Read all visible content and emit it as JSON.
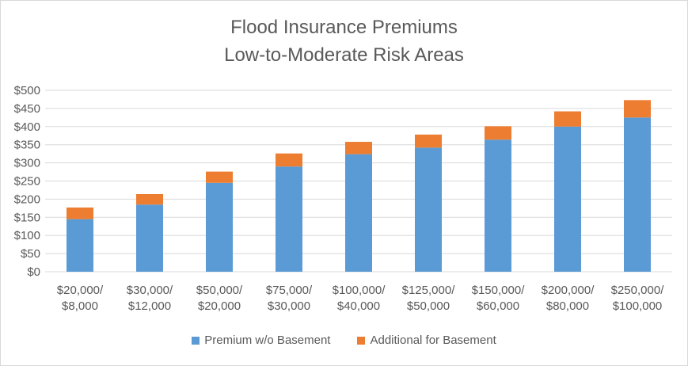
{
  "chart_data": {
    "type": "bar",
    "stacked": true,
    "title": [
      "Flood Insurance Premiums",
      "Low-to-Moderate Risk Areas"
    ],
    "xlabel": "",
    "ylabel": "",
    "categories": [
      [
        "$20,000/",
        "$8,000"
      ],
      [
        "$30,000/",
        "$12,000"
      ],
      [
        "$50,000/",
        "$20,000"
      ],
      [
        "$75,000/",
        "$30,000"
      ],
      [
        "$100,000/",
        "$40,000"
      ],
      [
        "$125,000/",
        "$50,000"
      ],
      [
        "$150,000/",
        "$60,000"
      ],
      [
        "$200,000/",
        "$80,000"
      ],
      [
        "$250,000/",
        "$100,000"
      ]
    ],
    "series": [
      {
        "name": "Premium w/o Basement",
        "color": "#5b9bd5",
        "values": [
          145,
          185,
          245,
          290,
          324,
          342,
          364,
          400,
          425
        ]
      },
      {
        "name": "Additional for Basement",
        "color": "#ed7d31",
        "values": [
          32,
          29,
          31,
          36,
          34,
          36,
          37,
          42,
          48
        ]
      }
    ],
    "ylim": [
      0,
      500
    ],
    "yticks": [
      0,
      50,
      100,
      150,
      200,
      250,
      300,
      350,
      400,
      450,
      500
    ],
    "ytick_labels": [
      "$0",
      "$50",
      "$100",
      "$150",
      "$200",
      "$250",
      "$300",
      "$350",
      "$400",
      "$450",
      "$500"
    ],
    "grid": true,
    "legend_position": "bottom"
  }
}
